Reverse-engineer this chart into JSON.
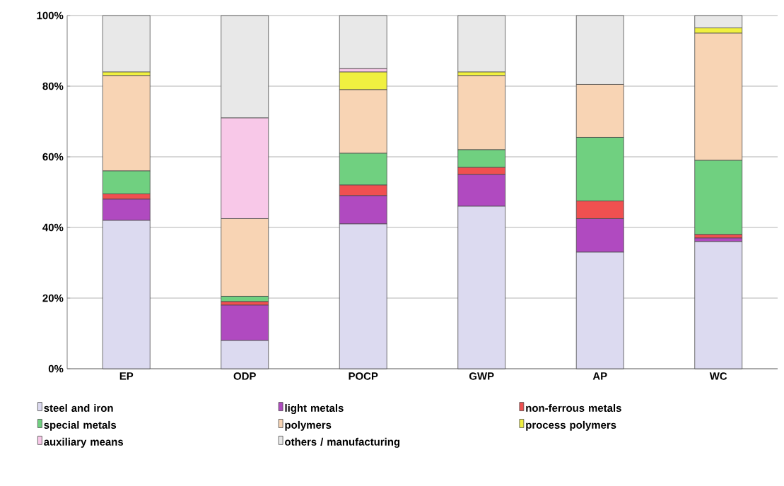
{
  "chart_data": {
    "type": "bar",
    "stacked": true,
    "grid": "y",
    "legend": "bottom",
    "categories": [
      "EP",
      "ODP",
      "POCP",
      "GWP",
      "AP",
      "WC"
    ],
    "ylim": [
      0,
      100
    ],
    "yticks": [
      {
        "value": 0,
        "label": "0%"
      },
      {
        "value": 20,
        "label": "20%"
      },
      {
        "value": 40,
        "label": "40%"
      },
      {
        "value": 60,
        "label": "60%"
      },
      {
        "value": 80,
        "label": "80%"
      },
      {
        "value": 100,
        "label": "100%"
      }
    ],
    "series": [
      {
        "name": "steel and iron",
        "color": "#dcdaf0",
        "values": [
          42,
          8,
          41,
          46,
          33,
          36
        ]
      },
      {
        "name": "light metals",
        "color": "#b04ac0",
        "values": [
          6,
          10,
          8,
          9,
          9.5,
          1
        ]
      },
      {
        "name": "non-ferrous metals",
        "color": "#f05050",
        "values": [
          1.5,
          1,
          3,
          2,
          5,
          1
        ]
      },
      {
        "name": "special metals",
        "color": "#70d080",
        "values": [
          6.5,
          1.5,
          9,
          5,
          18,
          21
        ]
      },
      {
        "name": "polymers",
        "color": "#f8d4b4",
        "values": [
          27,
          22,
          18,
          21,
          15,
          36
        ]
      },
      {
        "name": "process polymers",
        "color": "#f0f040",
        "values": [
          1,
          0,
          5,
          1,
          0,
          1.5
        ]
      },
      {
        "name": "auxiliary means",
        "color": "#f8c8e8",
        "values": [
          0,
          28.5,
          1,
          0,
          0,
          0
        ]
      },
      {
        "name": "others / manufacturing",
        "color": "#e8e8e8",
        "values": [
          16,
          29,
          15,
          16,
          19.5,
          3.5
        ]
      }
    ]
  }
}
